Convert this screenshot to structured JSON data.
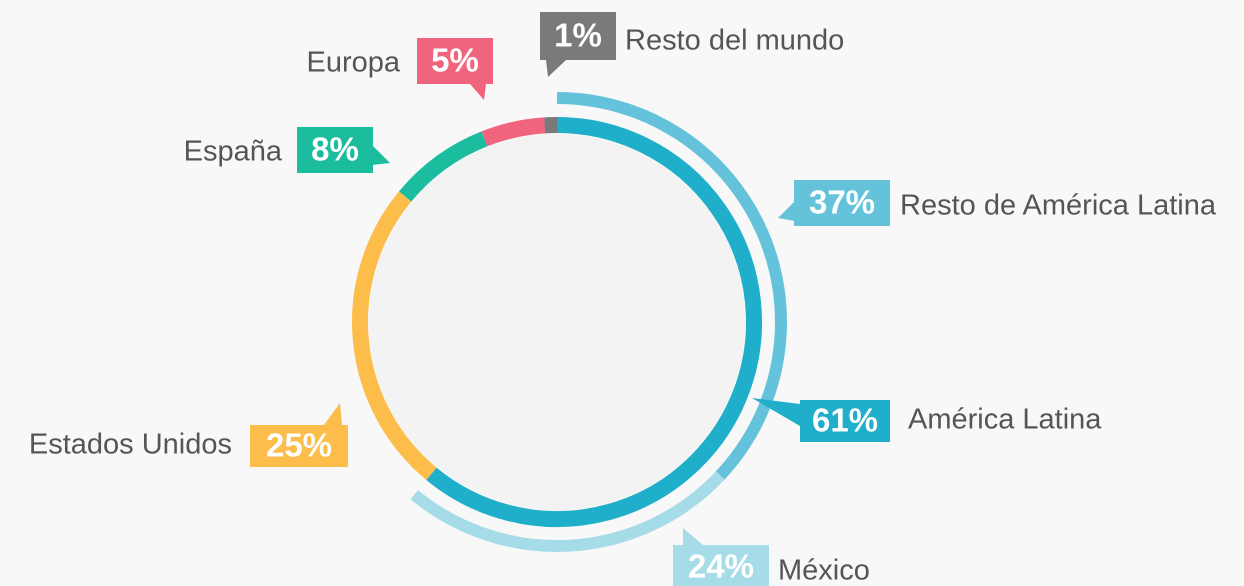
{
  "chart_data": {
    "type": "donut",
    "categories": [
      "América Latina",
      "Estados Unidos",
      "España",
      "Europa",
      "Resto del mundo"
    ],
    "values": [
      61,
      25,
      8,
      5,
      1
    ],
    "value_labels": [
      "61%",
      "25%",
      "8%",
      "5%",
      "1%"
    ],
    "colors": [
      "#1fafcb",
      "#fdbd4a",
      "#1cbc9f",
      "#f1647e",
      "#7a7a7c"
    ],
    "outer_ring": {
      "categories": [
        "Resto de América Latina",
        "México"
      ],
      "values": [
        37,
        24
      ],
      "value_labels": [
        "37%",
        "24%"
      ],
      "colors": [
        "#64c3da",
        "#a6dbe8"
      ]
    }
  }
}
